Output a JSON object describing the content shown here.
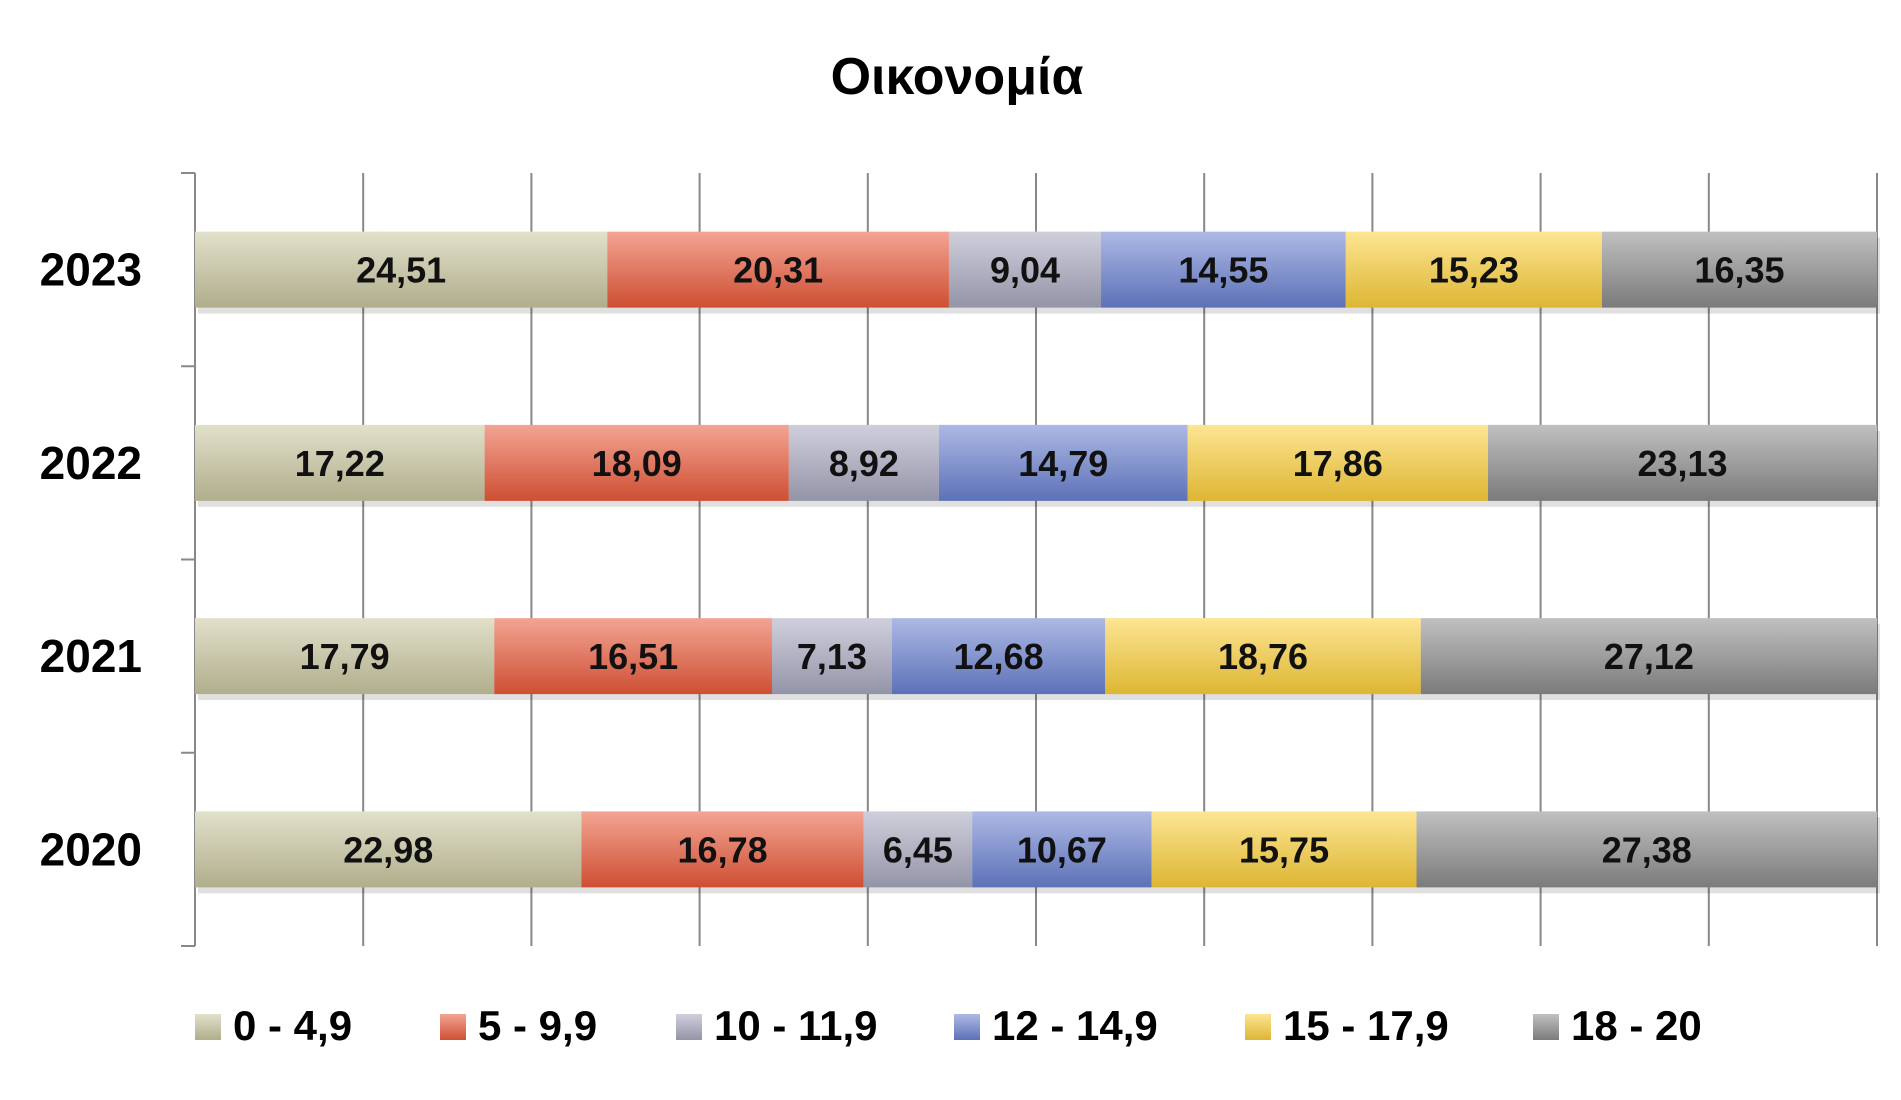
{
  "chart_data": {
    "type": "bar",
    "orientation": "horizontal",
    "stacked": "percent",
    "title": "Οικονομία",
    "categories": [
      "2023",
      "2022",
      "2021",
      "2020"
    ],
    "series": [
      {
        "name": "0  -  4,9",
        "color": "#c9c69f",
        "values": [
          24.51,
          17.22,
          17.79,
          22.98
        ],
        "labels": [
          "24,51",
          "17,22",
          "17,79",
          "22,98"
        ]
      },
      {
        "name": "5  - 9,9",
        "color": "#ea5a3a",
        "values": [
          20.31,
          18.09,
          16.51,
          16.78
        ],
        "labels": [
          "20,31",
          "18,09",
          "16,51",
          "16,78"
        ]
      },
      {
        "name": "10 - 11,9",
        "color": "#a8a8bf",
        "values": [
          9.04,
          8.92,
          7.13,
          6.45
        ],
        "labels": [
          "9,04",
          "8,92",
          "7,13",
          "6,45"
        ]
      },
      {
        "name": "12  - 14,9",
        "color": "#6a80d0",
        "values": [
          14.55,
          14.79,
          12.68,
          10.67
        ],
        "labels": [
          "14,55",
          "14,79",
          "12,68",
          "10,67"
        ]
      },
      {
        "name": "15  - 17,9",
        "color": "#fbcf3a",
        "values": [
          15.23,
          17.86,
          18.76,
          15.75
        ],
        "labels": [
          "15,23",
          "17,86",
          "18,76",
          "15,75"
        ]
      },
      {
        "name": "18  - 20",
        "color": "#8c8c8c",
        "values": [
          16.35,
          23.13,
          27.12,
          27.38
        ],
        "labels": [
          "16,35",
          "23,13",
          "27,12",
          "27,38"
        ]
      }
    ],
    "xlim": [
      0,
      100
    ],
    "grid": true,
    "legend": "bottom"
  }
}
